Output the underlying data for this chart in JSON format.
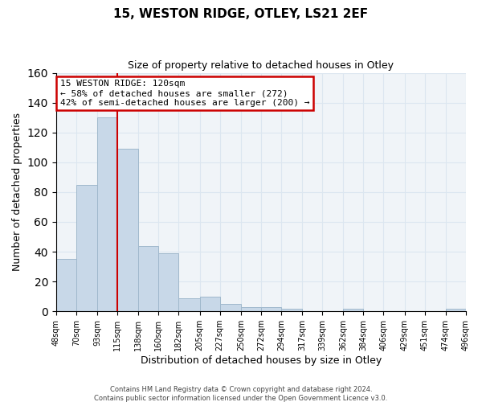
{
  "title": "15, WESTON RIDGE, OTLEY, LS21 2EF",
  "subtitle": "Size of property relative to detached houses in Otley",
  "xlabel": "Distribution of detached houses by size in Otley",
  "ylabel": "Number of detached properties",
  "bar_color": "#c8d8e8",
  "bar_edge_color": "#a0b8cc",
  "bin_labels": [
    "48sqm",
    "70sqm",
    "93sqm",
    "115sqm",
    "138sqm",
    "160sqm",
    "182sqm",
    "205sqm",
    "227sqm",
    "250sqm",
    "272sqm",
    "294sqm",
    "317sqm",
    "339sqm",
    "362sqm",
    "384sqm",
    "406sqm",
    "429sqm",
    "451sqm",
    "474sqm",
    "496sqm"
  ],
  "bin_edges": [
    48,
    70,
    93,
    115,
    138,
    160,
    182,
    205,
    227,
    250,
    272,
    294,
    317,
    339,
    362,
    384,
    406,
    429,
    451,
    474,
    496
  ],
  "bar_heights": [
    35,
    85,
    130,
    109,
    44,
    39,
    9,
    10,
    5,
    3,
    3,
    2,
    0,
    0,
    2,
    0,
    0,
    0,
    0,
    2
  ],
  "property_line_x": 115,
  "annotation_text": "15 WESTON RIDGE: 120sqm\n← 58% of detached houses are smaller (272)\n42% of semi-detached houses are larger (200) →",
  "annotation_box_color": "#ffffff",
  "annotation_box_edge_color": "#cc0000",
  "property_line_color": "#cc0000",
  "ylim": [
    0,
    160
  ],
  "yticks": [
    0,
    20,
    40,
    60,
    80,
    100,
    120,
    140,
    160
  ],
  "grid_color": "#dce6f0",
  "footer_line1": "Contains HM Land Registry data © Crown copyright and database right 2024.",
  "footer_line2": "Contains public sector information licensed under the Open Government Licence v3.0.",
  "bg_color": "#ffffff",
  "plot_bg_color": "#f0f4f8"
}
